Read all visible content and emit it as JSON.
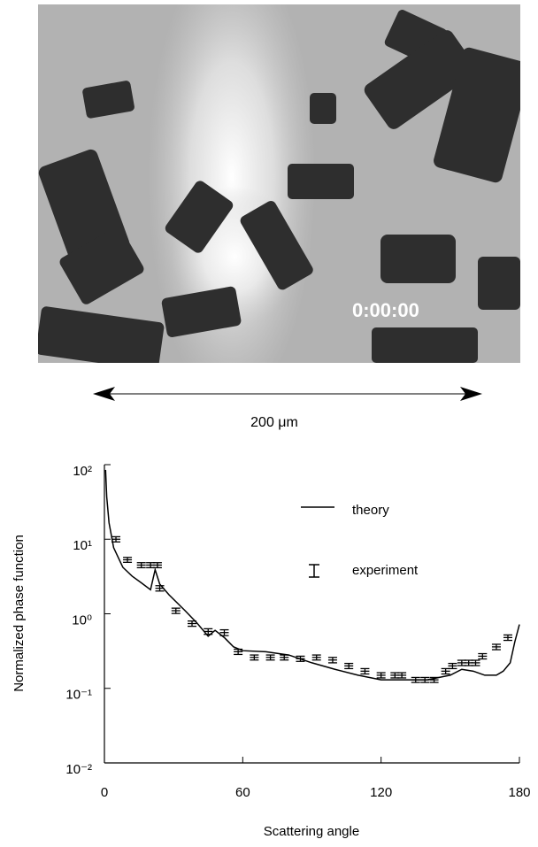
{
  "image": {
    "timestamp": "0:00:00",
    "scale_label": "200 μm"
  },
  "chart_data": {
    "type": "line",
    "xlabel": "Scattering angle",
    "ylabel": "Normalized phase function",
    "xlim": [
      0,
      180
    ],
    "xticks": [
      0,
      60,
      120,
      180
    ],
    "ylim": [
      0.01,
      100
    ],
    "log_y": true,
    "yticks": [
      {
        "value": 0.01,
        "label": "10⁻²"
      },
      {
        "value": 0.1,
        "label": "10⁻¹"
      },
      {
        "value": 1,
        "label": "10⁰"
      },
      {
        "value": 10,
        "label": "10¹"
      },
      {
        "value": 100,
        "label": "10²"
      }
    ],
    "series": [
      {
        "name": "theory",
        "mode": "line",
        "color": "#000000",
        "x": [
          0.5,
          1,
          2,
          4,
          8,
          12,
          16,
          20,
          22,
          24,
          28,
          35,
          40,
          45,
          48,
          52,
          56,
          60,
          70,
          80,
          90,
          100,
          110,
          120,
          130,
          140,
          150,
          155,
          160,
          165,
          170,
          173,
          176,
          178,
          180
        ],
        "values": [
          85,
          37,
          16.6,
          7.7,
          4.2,
          3.2,
          2.6,
          2.1,
          3.9,
          2.5,
          1.8,
          1.1,
          0.76,
          0.5,
          0.6,
          0.48,
          0.36,
          0.32,
          0.31,
          0.28,
          0.22,
          0.18,
          0.15,
          0.13,
          0.13,
          0.13,
          0.15,
          0.18,
          0.17,
          0.15,
          0.15,
          0.17,
          0.22,
          0.42,
          0.72
        ]
      },
      {
        "name": "experiment",
        "mode": "errorbar",
        "color": "#000000",
        "x": [
          5,
          10,
          16,
          20,
          23,
          24,
          31,
          38,
          45,
          52,
          58,
          65,
          72,
          78,
          85,
          92,
          99,
          106,
          113,
          120,
          126,
          129,
          135,
          139,
          143,
          148,
          151,
          155,
          158,
          161,
          164,
          170,
          175
        ],
        "values": [
          10,
          5.3,
          4.5,
          4.5,
          4.5,
          2.2,
          1.1,
          0.74,
          0.58,
          0.56,
          0.31,
          0.26,
          0.26,
          0.26,
          0.25,
          0.26,
          0.24,
          0.2,
          0.17,
          0.15,
          0.15,
          0.15,
          0.13,
          0.13,
          0.13,
          0.17,
          0.2,
          0.22,
          0.22,
          0.22,
          0.27,
          0.36,
          0.48
        ],
        "errors": [
          0.8,
          0.4,
          0.35,
          0.35,
          0.35,
          0.18,
          0.09,
          0.06,
          0.05,
          0.05,
          0.025,
          0.02,
          0.02,
          0.02,
          0.02,
          0.02,
          0.02,
          0.016,
          0.014,
          0.012,
          0.012,
          0.012,
          0.01,
          0.01,
          0.01,
          0.014,
          0.016,
          0.018,
          0.018,
          0.018,
          0.022,
          0.03,
          0.04
        ]
      }
    ]
  }
}
